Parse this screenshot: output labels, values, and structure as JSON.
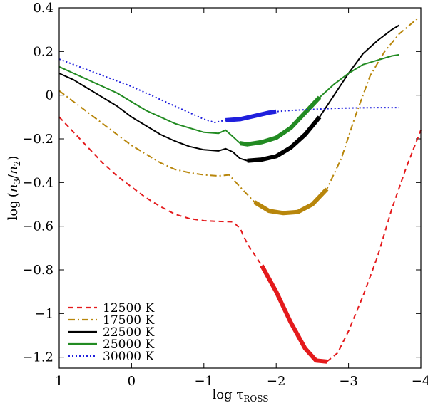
{
  "chart_data": {
    "type": "line",
    "title": "",
    "xlabel": "log τ",
    "xlabel_sub": "ROSS",
    "ylabel_parts": [
      "log",
      "(",
      "n",
      "3",
      "/",
      "n",
      "2",
      ")"
    ],
    "xlim": [
      1,
      -4
    ],
    "ylim": [
      -1.25,
      0.4
    ],
    "xticks": [
      1,
      0,
      -1,
      -2,
      -3,
      -4
    ],
    "xtick_labels": [
      "1",
      "0",
      "−1",
      "−2",
      "−3",
      "−4"
    ],
    "yticks": [
      0.4,
      0.2,
      0,
      -0.2,
      -0.4,
      -0.6,
      -0.8,
      -1,
      -1.2
    ],
    "ytick_labels": [
      "0.4",
      "0.2",
      "0",
      "−0.2",
      "−0.4",
      "−0.6",
      "−0.8",
      "−1",
      "−1.2"
    ],
    "grid": false,
    "legend_position": "bottom-left",
    "series": [
      {
        "name": "12500 K",
        "color": "#e41a1c",
        "style": "dashed",
        "x": [
          1.0,
          0.8,
          0.6,
          0.4,
          0.2,
          0.0,
          -0.2,
          -0.4,
          -0.6,
          -0.8,
          -1.0,
          -1.2,
          -1.4,
          -1.5,
          -1.6,
          -1.8,
          -2.0,
          -2.2,
          -2.4,
          -2.55,
          -2.7,
          -2.85,
          -3.0,
          -3.2,
          -3.4,
          -3.6,
          -3.8,
          -4.0
        ],
        "y": [
          -0.1,
          -0.17,
          -0.24,
          -0.31,
          -0.37,
          -0.42,
          -0.47,
          -0.51,
          -0.545,
          -0.565,
          -0.575,
          -0.578,
          -0.58,
          -0.61,
          -0.68,
          -0.78,
          -0.9,
          -1.04,
          -1.16,
          -1.215,
          -1.22,
          -1.18,
          -1.08,
          -0.92,
          -0.74,
          -0.52,
          -0.33,
          -0.16
        ],
        "thick_range": [
          -1.8,
          -2.7
        ]
      },
      {
        "name": "17500 K",
        "color": "#b8860b",
        "style": "dashdot",
        "x": [
          1.0,
          0.8,
          0.6,
          0.4,
          0.2,
          0.0,
          -0.2,
          -0.4,
          -0.6,
          -0.8,
          -1.0,
          -1.2,
          -1.35,
          -1.5,
          -1.7,
          -1.9,
          -2.1,
          -2.3,
          -2.5,
          -2.7,
          -2.9,
          -3.1,
          -3.3,
          -3.5,
          -3.7,
          -3.95
        ],
        "y": [
          0.02,
          -0.03,
          -0.08,
          -0.13,
          -0.18,
          -0.23,
          -0.27,
          -0.31,
          -0.34,
          -0.355,
          -0.365,
          -0.37,
          -0.365,
          -0.42,
          -0.49,
          -0.53,
          -0.54,
          -0.535,
          -0.5,
          -0.43,
          -0.29,
          -0.09,
          0.09,
          0.2,
          0.28,
          0.35
        ],
        "thick_range": [
          -1.7,
          -2.7
        ]
      },
      {
        "name": "22500 K",
        "color": "#000000",
        "style": "solid",
        "x": [
          1.0,
          0.8,
          0.6,
          0.4,
          0.2,
          0.0,
          -0.2,
          -0.4,
          -0.6,
          -0.8,
          -1.0,
          -1.2,
          -1.3,
          -1.4,
          -1.5,
          -1.6,
          -1.8,
          -2.0,
          -2.2,
          -2.4,
          -2.6,
          -2.8,
          -3.0,
          -3.2,
          -3.4,
          -3.6,
          -3.7
        ],
        "y": [
          0.1,
          0.07,
          0.03,
          -0.01,
          -0.05,
          -0.1,
          -0.14,
          -0.18,
          -0.21,
          -0.235,
          -0.25,
          -0.255,
          -0.245,
          -0.26,
          -0.29,
          -0.3,
          -0.295,
          -0.28,
          -0.24,
          -0.18,
          -0.1,
          0.0,
          0.1,
          0.19,
          0.25,
          0.3,
          0.32
        ],
        "thick_range": [
          -1.6,
          -2.7
        ]
      },
      {
        "name": "25000 K",
        "color": "#228b22",
        "style": "solid",
        "x": [
          1.0,
          0.8,
          0.6,
          0.4,
          0.2,
          0.0,
          -0.2,
          -0.4,
          -0.6,
          -0.8,
          -1.0,
          -1.2,
          -1.3,
          -1.4,
          -1.5,
          -1.6,
          -1.8,
          -2.0,
          -2.2,
          -2.4,
          -2.6,
          -2.8,
          -3.0,
          -3.2,
          -3.4,
          -3.6,
          -3.7
        ],
        "y": [
          0.13,
          0.1,
          0.07,
          0.04,
          0.01,
          -0.03,
          -0.07,
          -0.1,
          -0.13,
          -0.15,
          -0.17,
          -0.175,
          -0.16,
          -0.19,
          -0.22,
          -0.225,
          -0.215,
          -0.195,
          -0.15,
          -0.08,
          -0.01,
          0.05,
          0.1,
          0.14,
          0.16,
          0.18,
          0.185
        ],
        "thick_range": [
          -1.5,
          -2.6
        ]
      },
      {
        "name": "30000 K",
        "color": "#1f1fdd",
        "style": "dotted",
        "x": [
          1.0,
          0.8,
          0.6,
          0.4,
          0.2,
          0.0,
          -0.2,
          -0.4,
          -0.6,
          -0.8,
          -1.0,
          -1.15,
          -1.3,
          -1.5,
          -1.7,
          -1.9,
          -2.0,
          -2.2,
          -2.5,
          -2.8,
          -3.1,
          -3.4,
          -3.7
        ],
        "y": [
          0.165,
          0.14,
          0.115,
          0.09,
          0.065,
          0.04,
          0.01,
          -0.02,
          -0.05,
          -0.08,
          -0.11,
          -0.125,
          -0.115,
          -0.11,
          -0.095,
          -0.08,
          -0.075,
          -0.07,
          -0.065,
          -0.06,
          -0.058,
          -0.057,
          -0.057
        ],
        "thick_range": [
          -1.3,
          -2.0
        ]
      }
    ]
  }
}
